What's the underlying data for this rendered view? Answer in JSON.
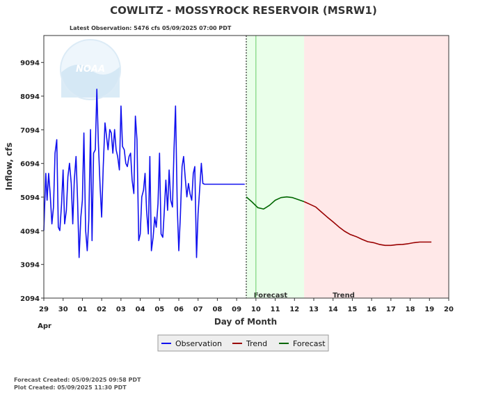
{
  "chart_data": {
    "type": "line",
    "title": "COWLITZ - MOSSYROCK RESERVOIR  (MSRW1)",
    "subtitle": "Latest Observation: 5476 cfs 05/09/2025 07:00 PDT",
    "xlabel": "Day of Month",
    "ylabel": "Inflow, cfs",
    "month_label": "Apr",
    "x_tick_labels": [
      "29",
      "30",
      "01",
      "02",
      "03",
      "04",
      "05",
      "06",
      "07",
      "08",
      "09",
      "10",
      "11",
      "12",
      "13",
      "14",
      "15",
      "16",
      "17",
      "18",
      "19",
      "20"
    ],
    "y_ticks": [
      2094,
      3094,
      4094,
      5094,
      6094,
      7094,
      8094,
      9094
    ],
    "ylim": [
      2094,
      9894
    ],
    "xlim": [
      0,
      21
    ],
    "grid": false,
    "legend_position": "bottom-center",
    "zones": {
      "forecast": {
        "label": "Forecast",
        "color": "#eaffea",
        "x0": 10.5,
        "x1": 13.5
      },
      "trend": {
        "label": "Trend",
        "color": "#ffe8e8",
        "x0": 13.5,
        "x1": 21
      }
    },
    "now_x": 10.5,
    "series": [
      {
        "name": "Observation",
        "color": "#1010ee",
        "x": [
          0.0,
          0.1,
          0.17,
          0.25,
          0.33,
          0.42,
          0.5,
          0.58,
          0.67,
          0.75,
          0.83,
          0.92,
          1.0,
          1.08,
          1.17,
          1.25,
          1.33,
          1.42,
          1.5,
          1.58,
          1.67,
          1.75,
          1.83,
          1.92,
          2.0,
          2.08,
          2.17,
          2.25,
          2.33,
          2.42,
          2.5,
          2.58,
          2.67,
          2.75,
          2.83,
          2.92,
          3.0,
          3.08,
          3.17,
          3.25,
          3.33,
          3.42,
          3.5,
          3.58,
          3.67,
          3.75,
          3.83,
          3.92,
          4.0,
          4.08,
          4.17,
          4.25,
          4.33,
          4.42,
          4.5,
          4.58,
          4.67,
          4.75,
          4.83,
          4.92,
          5.0,
          5.08,
          5.17,
          5.25,
          5.33,
          5.42,
          5.5,
          5.58,
          5.67,
          5.75,
          5.83,
          5.92,
          6.0,
          6.08,
          6.17,
          6.25,
          6.33,
          6.42,
          6.5,
          6.58,
          6.67,
          6.75,
          6.83,
          6.92,
          7.0,
          7.08,
          7.17,
          7.25,
          7.33,
          7.42,
          7.5,
          7.58,
          7.67,
          7.75,
          7.83,
          7.92,
          8.0,
          8.08,
          8.17,
          8.25,
          8.33,
          8.42,
          8.5,
          8.58,
          8.67,
          8.75,
          8.83,
          8.92,
          9.0,
          9.08,
          9.17,
          9.25,
          9.33,
          9.42,
          9.5,
          9.58,
          9.67,
          9.75,
          9.83,
          9.92,
          10.0,
          10.08,
          10.17,
          10.25,
          10.33,
          10.42
        ],
        "y": [
          4100,
          5800,
          5000,
          5800,
          5200,
          4300,
          4800,
          6400,
          6800,
          4200,
          4100,
          4900,
          5900,
          4300,
          4700,
          5700,
          6100,
          5500,
          4300,
          5600,
          6300,
          5000,
          3300,
          4500,
          5000,
          7000,
          4100,
          3500,
          4400,
          7100,
          3800,
          6400,
          6500,
          8300,
          6700,
          5400,
          4500,
          6000,
          7300,
          6900,
          6500,
          7100,
          7000,
          6400,
          7100,
          6500,
          6300,
          5900,
          7800,
          6600,
          6500,
          6100,
          6000,
          6300,
          6400,
          5600,
          5200,
          7500,
          6800,
          3800,
          4000,
          5100,
          5300,
          5800,
          4700,
          4000,
          6300,
          3500,
          3900,
          4500,
          4200,
          4900,
          6400,
          4000,
          3900,
          4700,
          5600,
          4700,
          5900,
          5000,
          4800,
          6500,
          7800,
          4800,
          3500,
          4500,
          6000,
          6300,
          5700,
          5100,
          5500,
          5200,
          5000,
          5800,
          6000,
          3300,
          4600,
          5300,
          6100,
          5500,
          5476,
          5476,
          5476,
          5476,
          5476,
          5476,
          5476,
          5476,
          5476,
          5476,
          5476,
          5476,
          5476,
          5476,
          5476,
          5476,
          5476,
          5476,
          5476,
          5476,
          5476,
          5476,
          5476,
          5476,
          5476,
          5476
        ]
      },
      {
        "name": "Forecast",
        "color": "#006600",
        "x": [
          10.5,
          10.8,
          11.1,
          11.4,
          11.7,
          12.0,
          12.3,
          12.6,
          12.9,
          13.2,
          13.5
        ],
        "y": [
          5100,
          4950,
          4780,
          4740,
          4850,
          5000,
          5080,
          5100,
          5080,
          5020,
          4960
        ]
      },
      {
        "name": "Trend",
        "color": "#990000",
        "x": [
          13.5,
          13.8,
          14.1,
          14.4,
          14.7,
          15.0,
          15.3,
          15.6,
          15.9,
          16.2,
          16.5,
          16.8,
          17.1,
          17.4,
          17.7,
          18.0,
          18.3,
          18.6,
          18.9,
          19.2,
          19.5,
          19.8,
          20.1
        ],
        "y": [
          4960,
          4880,
          4800,
          4650,
          4500,
          4360,
          4210,
          4080,
          3980,
          3920,
          3840,
          3770,
          3740,
          3690,
          3660,
          3660,
          3680,
          3690,
          3710,
          3740,
          3760,
          3760,
          3760
        ]
      }
    ]
  },
  "legend": {
    "items": [
      {
        "label": "Observation",
        "color": "#1010ee"
      },
      {
        "label": "Trend",
        "color": "#990000"
      },
      {
        "label": "Forecast",
        "color": "#006600"
      }
    ]
  },
  "logo": {
    "text": "NOAA"
  },
  "footer": {
    "forecast_created": "Forecast Created: 05/09/2025 09:58 PDT",
    "plot_created": "Plot Created: 05/09/2025 11:30 PDT"
  }
}
